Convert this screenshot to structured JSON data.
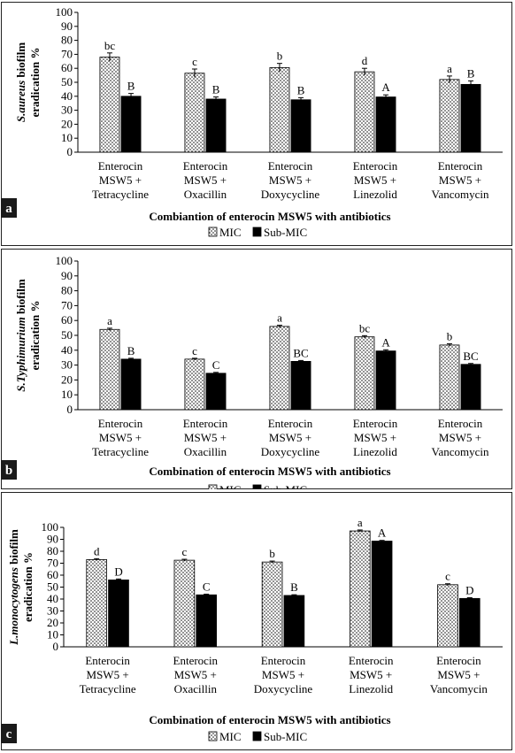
{
  "figure": {
    "panels": [
      {
        "panel_label": "a",
        "legend": [
          "MIC",
          "Sub-MIC"
        ],
        "xlabel": "Combiantion of enterocin MSW5 with antibiotics",
        "ylabel_italic": "S.aureus",
        "ylabel_rest": " biofilm",
        "ylabel_line2": "eradication %"
      },
      {
        "panel_label": "b",
        "legend": [
          "MIC",
          "Sub-MIC"
        ],
        "xlabel": "Combination of enterocin MSW5 with antibiotics",
        "ylabel_italic": "S.Typhimurium",
        "ylabel_rest": " biofilm",
        "ylabel_line2": "eradication %"
      },
      {
        "panel_label": "c",
        "legend": [
          "MIC",
          "Sub-MIC"
        ],
        "xlabel": "Combination of enterocin MSW5 with antibiotics",
        "ylabel_italic": "L.monocytogens",
        "ylabel_rest": " biofilm",
        "ylabel_line2": "eradication %"
      }
    ]
  },
  "chart_data": [
    {
      "type": "bar",
      "categories": [
        [
          "Enterocin",
          "MSW5 +",
          "Tetracycline"
        ],
        [
          "Enterocin",
          "MSW5 +",
          "Oxacillin"
        ],
        [
          "Enterocin",
          "MSW5 +",
          "Doxycycline"
        ],
        [
          "Enterocin",
          "MSW5 +",
          "Linezolid"
        ],
        [
          "Enterocin",
          "MSW5 +",
          "Vancomycin"
        ]
      ],
      "series": [
        {
          "name": "MIC",
          "values": [
            68,
            56.5,
            60.5,
            57.5,
            52
          ],
          "errors": [
            3,
            3,
            3,
            2.5,
            2.5
          ],
          "letters": [
            "bc",
            "c",
            "b",
            "d",
            "a"
          ]
        },
        {
          "name": "Sub-MIC",
          "values": [
            40,
            38,
            37.5,
            39.5,
            48.5
          ],
          "errors": [
            2,
            1.5,
            1.5,
            1.5,
            2.5
          ],
          "letters": [
            "B",
            "B",
            "B",
            "A",
            "B"
          ]
        }
      ],
      "ylim": [
        0,
        100
      ],
      "yticks": [
        0,
        10,
        20,
        30,
        40,
        50,
        60,
        70,
        80,
        90,
        100
      ]
    },
    {
      "type": "bar",
      "categories": [
        [
          "Enterocin",
          "MSW5 +",
          "Tetracycline"
        ],
        [
          "Enterocin",
          "MSW5 +",
          "Oxacillin"
        ],
        [
          "Enterocin",
          "MSW5 +",
          "Doxycycline"
        ],
        [
          "Enterocin",
          "MSW5 +",
          "Linezolid"
        ],
        [
          "Enterocin",
          "MSW5 +",
          "Vancomycin"
        ]
      ],
      "series": [
        {
          "name": "MIC",
          "values": [
            54,
            34,
            56,
            49,
            43.5
          ],
          "errors": [
            0.8,
            0.6,
            0.8,
            0.8,
            0.8
          ],
          "letters": [
            "a",
            "c",
            "a",
            "bc",
            "b"
          ]
        },
        {
          "name": "Sub-MIC",
          "values": [
            34,
            24.5,
            32.5,
            39.5,
            30.5
          ],
          "errors": [
            0.6,
            0.6,
            0.6,
            0.8,
            0.6
          ],
          "letters": [
            "B",
            "C",
            "BC",
            "A",
            "BC"
          ]
        }
      ],
      "ylim": [
        0,
        100
      ],
      "yticks": [
        0,
        10,
        20,
        30,
        40,
        50,
        60,
        70,
        80,
        90,
        100
      ]
    },
    {
      "type": "bar",
      "categories": [
        [
          "Enterocin",
          "MSW5 +",
          "Tetracycline"
        ],
        [
          "Enterocin",
          "MSW5 +",
          "Oxacillin"
        ],
        [
          "Enterocin",
          "MSW5 +",
          "Doxycycline"
        ],
        [
          "Enterocin",
          "MSW5 +",
          "Linezolid"
        ],
        [
          "Enterocin",
          "MSW5 +",
          "Vancomycin"
        ]
      ],
      "series": [
        {
          "name": "MIC",
          "values": [
            73,
            72.5,
            71,
            97,
            52
          ],
          "errors": [
            0.8,
            0.8,
            0.8,
            0.8,
            0.8
          ],
          "letters": [
            "d",
            "c",
            "b",
            "a",
            "c"
          ]
        },
        {
          "name": "Sub-MIC",
          "values": [
            56,
            43.5,
            43,
            88.5,
            40.5
          ],
          "errors": [
            0.8,
            0.6,
            0.6,
            0.6,
            0.6
          ],
          "letters": [
            "D",
            "C",
            "B",
            "A",
            "D"
          ]
        }
      ],
      "ylim": [
        0,
        100
      ],
      "yticks": [
        0,
        10,
        20,
        30,
        40,
        50,
        60,
        70,
        80,
        90,
        100
      ]
    }
  ]
}
